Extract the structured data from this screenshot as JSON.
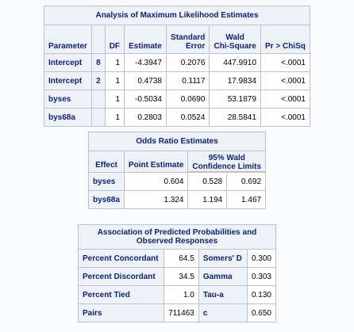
{
  "mle": {
    "title": "Analysis of Maximum Likelihood Estimates",
    "headers": [
      "Parameter",
      "",
      "DF",
      "Estimate",
      "Standard Error",
      "Wald Chi-Square",
      "Pr > ChiSq"
    ],
    "header_lines": {
      "stderr": [
        "Standard",
        "Error"
      ],
      "wald": [
        "Wald",
        "Chi-Square"
      ]
    },
    "rows": [
      [
        "Intercept",
        "8",
        "1",
        "-4.3947",
        "0.2076",
        "447.9910",
        "<.0001"
      ],
      [
        "Intercept",
        "2",
        "1",
        "0.4738",
        "0.1117",
        "17.9834",
        "<.0001"
      ],
      [
        "byses",
        "",
        "1",
        "-0.5034",
        "0.0690",
        "53.1879",
        "<.0001"
      ],
      [
        "bys68a",
        "",
        "1",
        "0.2803",
        "0.0524",
        "28.5841",
        "<.0001"
      ]
    ]
  },
  "odds": {
    "title": "Odds Ratio Estimates",
    "h_effect": "Effect",
    "h_point": "Point Estimate",
    "h_ci_1": "95% Wald",
    "h_ci_2": "Confidence Limits",
    "rows": [
      [
        "byses",
        "0.604",
        "0.528",
        "0.692"
      ],
      [
        "bys68a",
        "1.324",
        "1.194",
        "1.467"
      ]
    ]
  },
  "assoc": {
    "title_1": "Association of Predicted Probabilities and",
    "title_2": "Observed Responses",
    "rows": [
      [
        "Percent Concordant",
        "64.5",
        "Somers' D",
        "0.300"
      ],
      [
        "Percent Discordant",
        "34.5",
        "Gamma",
        "0.303"
      ],
      [
        "Percent Tied",
        "1.0",
        "Tau-a",
        "0.130"
      ],
      [
        "Pairs",
        "711463",
        "c",
        "0.650"
      ]
    ]
  }
}
